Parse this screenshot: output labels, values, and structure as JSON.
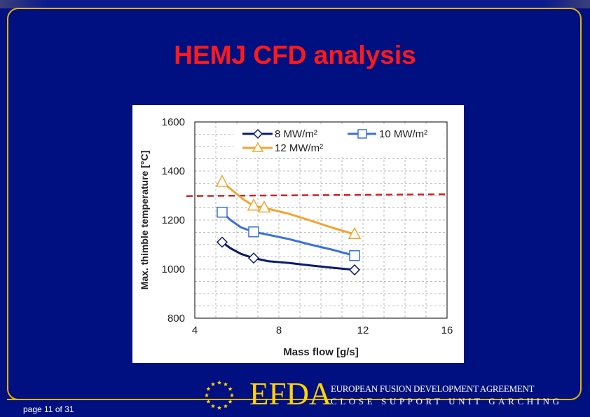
{
  "slide": {
    "title": "HEMJ CFD analysis",
    "page_label": "page 11 of 31",
    "org_logo_text": "EFDA",
    "org_name": "EUROPEAN FUSION DEVELOPMENT AGREEMENT",
    "org_unit": "CLOSE  SUPPORT  UNIT  GARCHING"
  },
  "colors": {
    "background": "#001080",
    "title": "#ff1a1a",
    "accent": "#e0b400",
    "series_8": "#0c1a6e",
    "series_10": "#3a73d8",
    "series_12": "#f2a530",
    "limit_line": "#d42020"
  },
  "chart_data": {
    "type": "line",
    "xlabel": "Mass flow  [g/s]",
    "ylabel": "Max. thimble temperature [°C]",
    "xlim": [
      4,
      16
    ],
    "ylim": [
      800,
      1600
    ],
    "xticks": [
      4,
      8,
      12,
      16
    ],
    "yticks": [
      800,
      1000,
      1200,
      1400,
      1600
    ],
    "grid": true,
    "legend": "top",
    "series": [
      {
        "name": "8 MW/m²",
        "marker": "diamond",
        "markers": [
          [
            5.3,
            1110
          ],
          [
            6.8,
            1045
          ],
          [
            11.6,
            997
          ]
        ],
        "curve": [
          [
            5.3,
            1110
          ],
          [
            5.7,
            1085
          ],
          [
            6.2,
            1062
          ],
          [
            6.8,
            1045
          ],
          [
            7.5,
            1032
          ],
          [
            8.5,
            1025
          ],
          [
            9.5,
            1015
          ],
          [
            10.5,
            1006
          ],
          [
            11.6,
            997
          ]
        ]
      },
      {
        "name": "10 MW/m²",
        "marker": "square",
        "markers": [
          [
            5.3,
            1232
          ],
          [
            6.8,
            1152
          ],
          [
            11.6,
            1055
          ]
        ],
        "curve": [
          [
            5.3,
            1232
          ],
          [
            5.7,
            1200
          ],
          [
            6.2,
            1170
          ],
          [
            6.8,
            1152
          ],
          [
            7.5,
            1140
          ],
          [
            8.5,
            1122
          ],
          [
            9.5,
            1100
          ],
          [
            10.5,
            1080
          ],
          [
            11.6,
            1055
          ]
        ]
      },
      {
        "name": "12 MW/m²",
        "marker": "triangle",
        "markers": [
          [
            5.3,
            1355
          ],
          [
            6.8,
            1258
          ],
          [
            7.3,
            1250
          ],
          [
            11.6,
            1142
          ]
        ],
        "curve": [
          [
            5.3,
            1355
          ],
          [
            5.8,
            1320
          ],
          [
            6.3,
            1285
          ],
          [
            6.8,
            1258
          ],
          [
            7.3,
            1250
          ],
          [
            8.5,
            1225
          ],
          [
            9.5,
            1198
          ],
          [
            10.5,
            1170
          ],
          [
            11.6,
            1142
          ]
        ]
      }
    ],
    "limit_line": {
      "style": "dashed",
      "from": [
        3.6,
        1298
      ],
      "to": [
        15.9,
        1305
      ]
    }
  }
}
